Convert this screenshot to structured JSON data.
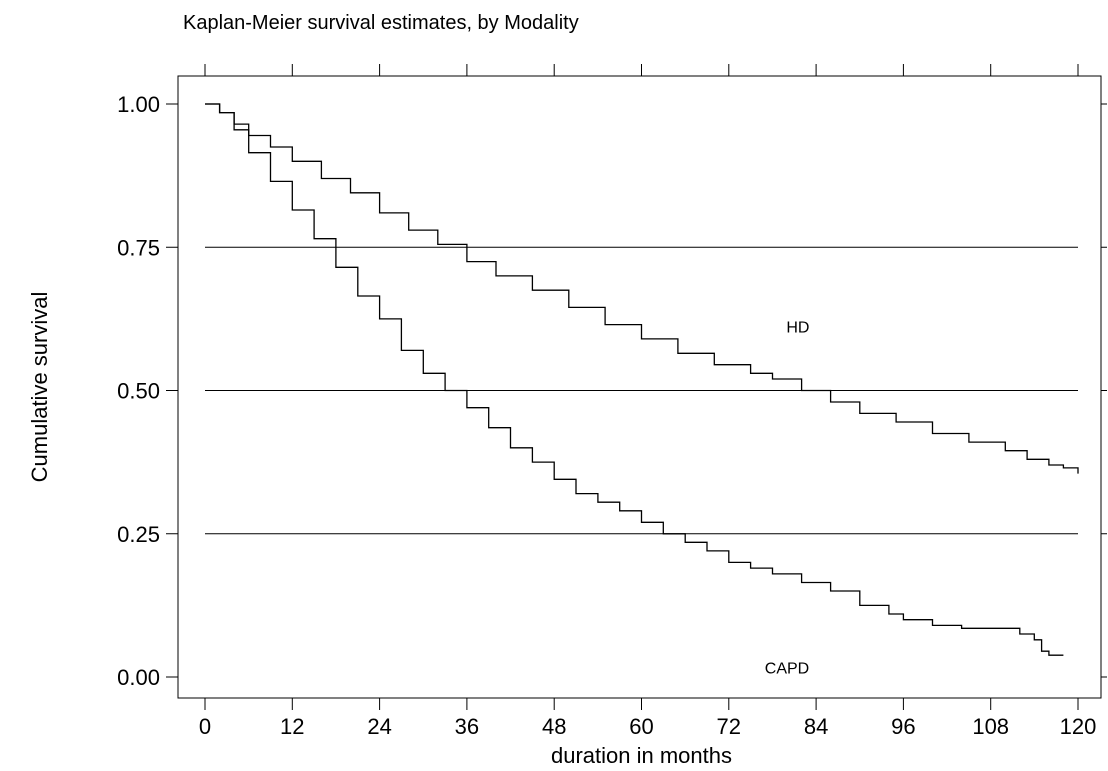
{
  "chart_data": {
    "type": "line",
    "title": "Kaplan-Meier survival estimates, by Modality",
    "xlabel": "duration in months",
    "ylabel": "Cumulative survival",
    "xlim": [
      0,
      120
    ],
    "ylim": [
      0,
      1
    ],
    "x_ticks": [
      0,
      12,
      24,
      36,
      48,
      60,
      72,
      84,
      96,
      108,
      120
    ],
    "y_ticks": [
      0,
      0.25,
      0.5,
      0.75,
      1
    ],
    "y_tick_labels": [
      "0.00",
      "0.25",
      "0.50",
      "0.75",
      "1.00"
    ],
    "grid": {
      "horizontal": [
        0.25,
        0.5,
        0.75
      ]
    },
    "series": [
      {
        "name": "HD",
        "label_at": [
          81.5,
          0.61
        ],
        "points": [
          [
            0,
            1.0
          ],
          [
            2,
            0.985
          ],
          [
            4,
            0.965
          ],
          [
            6,
            0.945
          ],
          [
            9,
            0.925
          ],
          [
            12,
            0.9
          ],
          [
            16,
            0.87
          ],
          [
            20,
            0.845
          ],
          [
            24,
            0.81
          ],
          [
            28,
            0.78
          ],
          [
            32,
            0.755
          ],
          [
            36,
            0.725
          ],
          [
            40,
            0.7
          ],
          [
            45,
            0.675
          ],
          [
            50,
            0.645
          ],
          [
            55,
            0.615
          ],
          [
            60,
            0.59
          ],
          [
            65,
            0.565
          ],
          [
            70,
            0.545
          ],
          [
            75,
            0.53
          ],
          [
            78,
            0.52
          ],
          [
            82,
            0.5
          ],
          [
            86,
            0.48
          ],
          [
            90,
            0.46
          ],
          [
            95,
            0.445
          ],
          [
            100,
            0.425
          ],
          [
            105,
            0.41
          ],
          [
            110,
            0.395
          ],
          [
            113,
            0.38
          ],
          [
            116,
            0.37
          ],
          [
            118,
            0.365
          ],
          [
            120,
            0.355
          ]
        ]
      },
      {
        "name": "CAPD",
        "label_at": [
          80,
          0.015
        ],
        "points": [
          [
            0,
            1.0
          ],
          [
            2,
            0.985
          ],
          [
            4,
            0.955
          ],
          [
            6,
            0.915
          ],
          [
            9,
            0.865
          ],
          [
            12,
            0.815
          ],
          [
            15,
            0.765
          ],
          [
            18,
            0.715
          ],
          [
            21,
            0.665
          ],
          [
            24,
            0.625
          ],
          [
            27,
            0.57
          ],
          [
            30,
            0.53
          ],
          [
            33,
            0.5
          ],
          [
            36,
            0.47
          ],
          [
            39,
            0.435
          ],
          [
            42,
            0.4
          ],
          [
            45,
            0.375
          ],
          [
            48,
            0.345
          ],
          [
            51,
            0.32
          ],
          [
            54,
            0.305
          ],
          [
            57,
            0.29
          ],
          [
            60,
            0.27
          ],
          [
            63,
            0.25
          ],
          [
            66,
            0.235
          ],
          [
            69,
            0.22
          ],
          [
            72,
            0.2
          ],
          [
            75,
            0.19
          ],
          [
            78,
            0.18
          ],
          [
            82,
            0.165
          ],
          [
            86,
            0.15
          ],
          [
            90,
            0.125
          ],
          [
            94,
            0.11
          ],
          [
            96,
            0.1
          ],
          [
            100,
            0.09
          ],
          [
            104,
            0.085
          ],
          [
            108,
            0.085
          ],
          [
            112,
            0.075
          ],
          [
            114,
            0.065
          ],
          [
            115,
            0.045
          ],
          [
            116,
            0.038
          ],
          [
            118,
            0.038
          ]
        ]
      }
    ]
  }
}
